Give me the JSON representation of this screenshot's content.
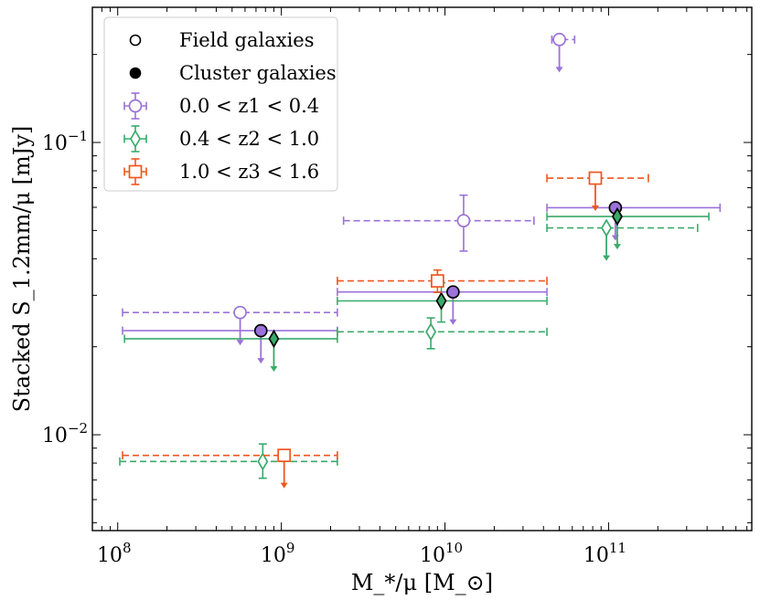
{
  "chart_data": {
    "type": "scatter",
    "title": "",
    "xlabel": "M_*/μ [M_⊙]",
    "ylabel": "Stacked S_1.2mm/μ [mJy]",
    "xscale": "log",
    "yscale": "log",
    "xlim": [
      70000000.0,
      750000000000.0
    ],
    "ylim": [
      0.0047,
      0.29
    ],
    "x_ticks": [
      {
        "value": 100000000.0,
        "base": "10",
        "exp": "8"
      },
      {
        "value": 1000000000.0,
        "base": "10",
        "exp": "9"
      },
      {
        "value": 10000000000.0,
        "base": "10",
        "exp": "10"
      },
      {
        "value": 100000000000.0,
        "base": "10",
        "exp": "11"
      }
    ],
    "y_ticks": [
      {
        "value": 0.01,
        "base": "10",
        "exp": "−2"
      },
      {
        "value": 0.1,
        "base": "10",
        "exp": "−1"
      }
    ],
    "legend": {
      "position": "top-left",
      "entries": [
        {
          "label": "Field galaxies",
          "marker": "circle-open",
          "color": "#000000"
        },
        {
          "label": "Cluster galaxies",
          "marker": "circle-filled",
          "color": "#000000"
        },
        {
          "label": "0.0 < z1 < 0.4",
          "marker": "circle-open",
          "color": "#9b72d9"
        },
        {
          "label": "0.4 < z2 < 1.0",
          "marker": "diamond-open",
          "color": "#3aaa6a"
        },
        {
          "label": "1.0 < z3 < 1.6",
          "marker": "square-open",
          "color": "#f0561e"
        }
      ]
    },
    "series": [
      {
        "name": "Field 0.0 < z1 < 0.4",
        "population": "field",
        "marker": "circle",
        "color": "#9b72d9",
        "linestyle": "dashed",
        "points": [
          {
            "x": 560000000.0,
            "y": 0.0262,
            "xmin": 107000000.0,
            "xmax": 2200000000.0,
            "upper_limit": true
          },
          {
            "x": 13000000000.0,
            "y": 0.054,
            "yerr_lo": 0.0425,
            "yerr_hi": 0.066,
            "xmin": 2400000000.0,
            "xmax": 35000000000.0,
            "upper_limit": false
          },
          {
            "x": 50000000000.0,
            "y": 0.225,
            "xmin": 45000000000.0,
            "xmax": 62000000000.0,
            "upper_limit": true
          }
        ]
      },
      {
        "name": "Cluster 0.0 < z1 < 0.4",
        "population": "cluster",
        "marker": "circle",
        "color": "#9b72d9",
        "linestyle": "solid",
        "points": [
          {
            "x": 750000000.0,
            "y": 0.0227,
            "xmin": 107000000.0,
            "xmax": 2200000000.0,
            "upper_limit": true
          },
          {
            "x": 11200000000.0,
            "y": 0.0308,
            "xmin": 2200000000.0,
            "xmax": 42000000000.0,
            "upper_limit": true
          },
          {
            "x": 110000000000.0,
            "y": 0.0598,
            "xmin": 42000000000.0,
            "xmax": 480000000000.0,
            "upper_limit": true
          }
        ]
      },
      {
        "name": "Field 0.4 < z2 < 1.0",
        "population": "field",
        "marker": "diamond",
        "color": "#3aaa6a",
        "linestyle": "dashed",
        "points": [
          {
            "x": 770000000.0,
            "y": 0.0081,
            "yerr_lo": 0.0071,
            "yerr_hi": 0.0093,
            "xmin": 103000000.0,
            "xmax": 2200000000.0,
            "upper_limit": false
          },
          {
            "x": 8200000000.0,
            "y": 0.0225,
            "yerr_lo": 0.0197,
            "yerr_hi": 0.0251,
            "xmin": 2200000000.0,
            "xmax": 42000000000.0,
            "upper_limit": false
          },
          {
            "x": 97000000000.0,
            "y": 0.051,
            "xmin": 42000000000.0,
            "xmax": 350000000000.0,
            "upper_limit": true
          }
        ]
      },
      {
        "name": "Cluster 0.4 < z2 < 1.0",
        "population": "cluster",
        "marker": "diamond",
        "color": "#3aaa6a",
        "linestyle": "solid",
        "points": [
          {
            "x": 900000000.0,
            "y": 0.0213,
            "xmin": 110000000.0,
            "xmax": 2200000000.0,
            "upper_limit": true
          },
          {
            "x": 9500000000.0,
            "y": 0.0287,
            "yerr_lo": 0.0243,
            "yerr_hi": 0.0331,
            "xmin": 2200000000.0,
            "xmax": 42000000000.0,
            "upper_limit": false
          },
          {
            "x": 113000000000.0,
            "y": 0.0558,
            "xmin": 42000000000.0,
            "xmax": 410000000000.0,
            "upper_limit": true
          }
        ]
      },
      {
        "name": "Field 1.0 < z3 < 1.6",
        "population": "field",
        "marker": "square",
        "color": "#f0561e",
        "linestyle": "dashed",
        "points": [
          {
            "x": 1040000000.0,
            "y": 0.0085,
            "xmin": 107000000.0,
            "xmax": 2200000000.0,
            "upper_limit": true
          },
          {
            "x": 9000000000.0,
            "y": 0.0336,
            "yerr_lo": 0.0307,
            "yerr_hi": 0.0366,
            "xmin": 2200000000.0,
            "xmax": 42000000000.0,
            "upper_limit": false
          },
          {
            "x": 83000000000.0,
            "y": 0.0755,
            "xmin": 42000000000.0,
            "xmax": 175000000000.0,
            "upper_limit": true
          }
        ]
      }
    ]
  }
}
